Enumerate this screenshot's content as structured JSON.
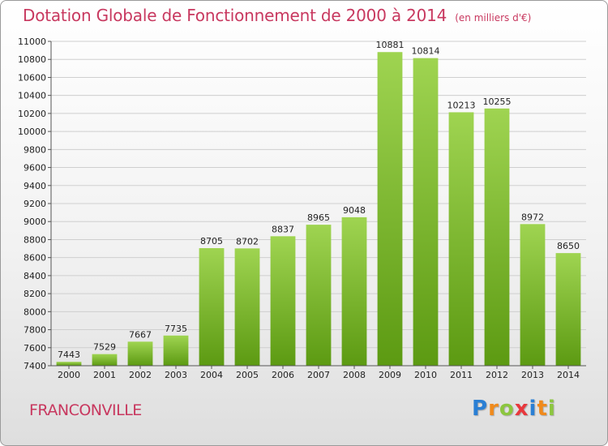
{
  "header": {
    "title": "Dotation Globale de Fonctionnement de 2000 à 2014",
    "unit_note": "(en milliers d'€)"
  },
  "footer": {
    "commune": "FRANCONVILLE",
    "logo": [
      "P",
      "r",
      "o",
      "x",
      "i",
      "t",
      "i"
    ],
    "logo_colors": [
      "#2a7fd4",
      "#f08a1c",
      "#8cc63f",
      "#e8383d",
      "#2a7fd4",
      "#f08a1c",
      "#8cc63f"
    ]
  },
  "colors": {
    "bar_top": "#9fd451",
    "bar_bottom": "#5c9a12",
    "grid": "#cfcfcf",
    "title": "#c8385f"
  },
  "chart_data": {
    "type": "bar",
    "title": "Dotation Globale de Fonctionnement de 2000 à 2014",
    "subtitle": "(en milliers d'€)",
    "xlabel": "",
    "ylabel": "",
    "categories": [
      "2000",
      "2001",
      "2002",
      "2003",
      "2004",
      "2005",
      "2006",
      "2007",
      "2008",
      "2009",
      "2010",
      "2011",
      "2012",
      "2013",
      "2014"
    ],
    "values": [
      7443,
      7529,
      7667,
      7735,
      8705,
      8702,
      8837,
      8965,
      9048,
      10881,
      10814,
      10213,
      10255,
      8972,
      8650
    ],
    "ylim": [
      7400,
      11000
    ],
    "yticks": [
      7400,
      7600,
      7800,
      8000,
      8200,
      8400,
      8600,
      8800,
      9000,
      9200,
      9400,
      9600,
      9800,
      10000,
      10200,
      10400,
      10600,
      10800,
      11000
    ],
    "grid": true,
    "legend": "none"
  }
}
